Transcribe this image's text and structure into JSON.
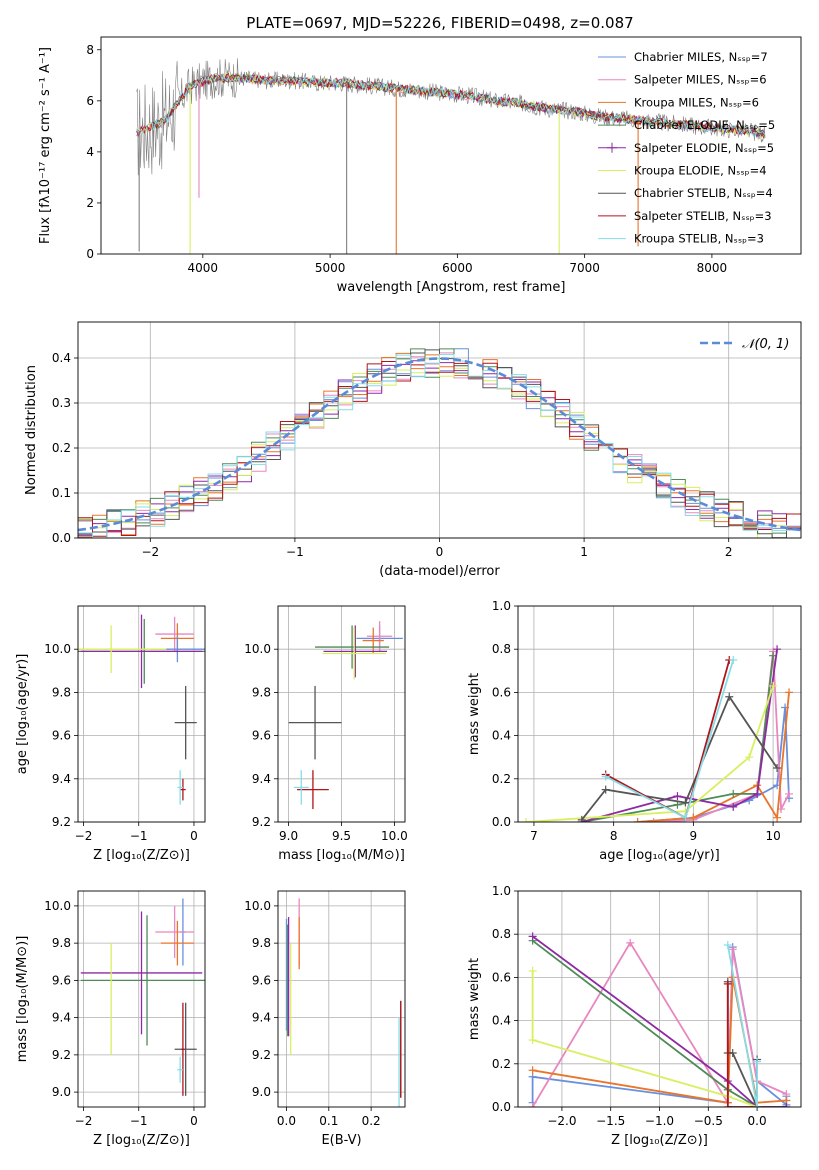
{
  "colors": {
    "chabrier_miles": "#6a8fdc",
    "salpeter_miles": "#e887c0",
    "kroupa_miles": "#e8752a",
    "chabrier_elodie": "#4f8a57",
    "salpeter_elodie": "#8e2aa3",
    "kroupa_elodie": "#d8ef5e",
    "chabrier_stelib": "#555555",
    "salpeter_stelib": "#b3141b",
    "kroupa_stelib": "#86dde8",
    "data": "#808080",
    "gaussian": "#5a8ad8"
  },
  "chart_data": [
    {
      "type": "line",
      "title": "PLATE=0697, MJD=52226, FIBERID=0498, z=0.087",
      "xlabel": "wavelength [Angstrom, rest frame]",
      "ylabel": "Flux [fλ10⁻¹⁷ erg cm⁻² s⁻¹ A⁻¹]",
      "xlim": [
        3200,
        8700
      ],
      "ylim": [
        0,
        8.5
      ],
      "xticks": [
        4000,
        5000,
        6000,
        7000,
        8000
      ],
      "yticks": [
        0,
        2,
        4,
        6,
        8
      ],
      "legend_position": "right",
      "legend": [
        {
          "label": "Chabrier MILES, N_SSP=7",
          "color_key": "chabrier_miles"
        },
        {
          "label": "Salpeter MILES, N_SSP=6",
          "color_key": "salpeter_miles"
        },
        {
          "label": "Kroupa MILES, N_SSP=6",
          "color_key": "kroupa_miles"
        },
        {
          "label": "Chabrier ELODIE, N_SSP=5",
          "color_key": "chabrier_elodie"
        },
        {
          "label": "Salpeter ELODIE, N_SSP=5",
          "color_key": "salpeter_elodie"
        },
        {
          "label": "Kroupa ELODIE, N_SSP=4",
          "color_key": "kroupa_elodie"
        },
        {
          "label": "Chabrier STELIB, N_SSP=4",
          "color_key": "chabrier_stelib"
        },
        {
          "label": "Salpeter STELIB, N_SSP=3",
          "color_key": "salpeter_stelib"
        },
        {
          "label": "Kroupa STELIB, N_SSP=3",
          "color_key": "kroupa_stelib"
        }
      ],
      "continuum": {
        "x": [
          3500,
          3700,
          3900,
          4100,
          4300,
          4500,
          4700,
          4900,
          5100,
          5300,
          5500,
          5700,
          5900,
          6100,
          6300,
          6500,
          6700,
          6900,
          7100,
          7300,
          7500,
          7700,
          7900,
          8100,
          8300,
          8400
        ],
        "y": [
          4.8,
          5.2,
          6.6,
          6.9,
          6.9,
          6.8,
          6.8,
          6.7,
          6.7,
          6.6,
          6.5,
          6.4,
          6.3,
          6.2,
          6.0,
          5.9,
          5.7,
          5.6,
          5.4,
          5.3,
          5.2,
          5.1,
          5.0,
          4.9,
          4.8,
          4.7
        ]
      },
      "dips": [
        {
          "x": 3500,
          "y": 0.1,
          "color_key": "data"
        },
        {
          "x": 3900,
          "y": 0,
          "color_key": "kroupa_elodie"
        },
        {
          "x": 3970,
          "y": 2.2,
          "color_key": "salpeter_miles"
        },
        {
          "x": 5130,
          "y": 0,
          "color_key": "data"
        },
        {
          "x": 5520,
          "y": 0,
          "color_key": "kroupa_miles"
        },
        {
          "x": 6800,
          "y": 0,
          "color_key": "kroupa_elodie"
        },
        {
          "x": 7420,
          "y": 0.3,
          "color_key": "kroupa_miles"
        }
      ]
    },
    {
      "type": "step",
      "xlabel": "(data-model)/error",
      "ylabel": "Normed distribution",
      "xlim": [
        -2.5,
        2.5
      ],
      "ylim": [
        0,
        0.48
      ],
      "xticks": [
        -2,
        -1,
        0,
        1,
        2
      ],
      "yticks": [
        0.0,
        0.1,
        0.2,
        0.3,
        0.4
      ],
      "legend": [
        {
          "label": "𝒩(0, 1)",
          "color_key": "gaussian"
        }
      ],
      "bin_width": 0.1
    },
    {
      "type": "error-bar",
      "xlabel": "Z [log₁₀(Z/Z⊙)]",
      "ylabel": "age  [log₁₀(age/yr)]",
      "xlim": [
        -2.1,
        0.2
      ],
      "ylim": [
        9.2,
        10.2
      ],
      "xticks": [
        -2,
        -1,
        0
      ],
      "xtick_labels": [
        "−2",
        "−1",
        "0"
      ],
      "yticks": [
        9.2,
        9.4,
        9.6,
        9.8,
        10.0
      ],
      "points": [
        {
          "x": -0.35,
          "xerr": 0.35,
          "y": 10.07,
          "yerr": 0.08,
          "color_key": "salpeter_miles"
        },
        {
          "x": -0.3,
          "xerr": 0.3,
          "y": 10.05,
          "yerr": 0.07,
          "color_key": "kroupa_miles"
        },
        {
          "x": -0.3,
          "xerr": 0.5,
          "y": 10.0,
          "yerr": 0.06,
          "color_key": "chabrier_miles"
        },
        {
          "x": -0.9,
          "xerr": 1.2,
          "y": 9.99,
          "yerr": 0.15,
          "color_key": "chabrier_elodie"
        },
        {
          "x": -0.95,
          "xerr": 1.1,
          "y": 9.99,
          "yerr": 0.17,
          "color_key": "salpeter_elodie"
        },
        {
          "x": -1.5,
          "xerr": 1.0,
          "y": 10.0,
          "yerr": 0.11,
          "color_key": "kroupa_elodie"
        },
        {
          "x": -0.15,
          "xerr": 0.2,
          "y": 9.66,
          "yerr": 0.17,
          "color_key": "chabrier_stelib"
        },
        {
          "x": -0.2,
          "xerr": 0.05,
          "y": 9.35,
          "yerr": 0.05,
          "color_key": "salpeter_stelib"
        },
        {
          "x": -0.25,
          "xerr": 0.05,
          "y": 9.36,
          "yerr": 0.08,
          "color_key": "kroupa_stelib"
        }
      ]
    },
    {
      "type": "error-bar",
      "xlabel": "mass [log₁₀(M/M⊙)]",
      "ylabel": "",
      "xlim": [
        8.9,
        10.1
      ],
      "ylim": [
        9.2,
        10.2
      ],
      "xticks": [
        9.0,
        9.5,
        10.0
      ],
      "xtick_labels": [
        "9.0",
        "9.5",
        "10.0"
      ],
      "yticks": [
        9.2,
        9.4,
        9.6,
        9.8,
        10.0
      ],
      "points": [
        {
          "x": 9.86,
          "xerr": 0.22,
          "y": 10.05,
          "yerr": 0.06,
          "color_key": "chabrier_miles"
        },
        {
          "x": 9.86,
          "xerr": 0.12,
          "y": 10.06,
          "yerr": 0.07,
          "color_key": "salpeter_miles"
        },
        {
          "x": 9.8,
          "xerr": 0.1,
          "y": 10.04,
          "yerr": 0.06,
          "color_key": "kroupa_miles"
        },
        {
          "x": 9.6,
          "xerr": 0.35,
          "y": 10.01,
          "yerr": 0.1,
          "color_key": "chabrier_elodie"
        },
        {
          "x": 9.63,
          "xerr": 0.3,
          "y": 9.99,
          "yerr": 0.12,
          "color_key": "salpeter_elodie"
        },
        {
          "x": 9.62,
          "xerr": 0.3,
          "y": 9.98,
          "yerr": 0.12,
          "color_key": "kroupa_elodie"
        },
        {
          "x": 9.25,
          "xerr": 0.25,
          "y": 9.66,
          "yerr": 0.17,
          "color_key": "chabrier_stelib"
        },
        {
          "x": 9.23,
          "xerr": 0.15,
          "y": 9.35,
          "yerr": 0.09,
          "color_key": "salpeter_stelib"
        },
        {
          "x": 9.12,
          "xerr": 0.07,
          "y": 9.36,
          "yerr": 0.08,
          "color_key": "kroupa_stelib"
        }
      ]
    },
    {
      "type": "line",
      "xlabel": "age  [log₁₀(age/yr)]",
      "ylabel": "mass weight",
      "xlim": [
        6.8,
        10.35
      ],
      "ylim": [
        0,
        1.0
      ],
      "xticks": [
        7,
        8,
        9,
        10
      ],
      "xtick_labels": [
        "7",
        "8",
        "9",
        "10"
      ],
      "yticks": [
        0.0,
        0.2,
        0.4,
        0.6,
        0.8,
        1.0
      ],
      "series": [
        {
          "color_key": "chabrier_miles",
          "x": [
            8.3,
            9.0,
            9.7,
            10.05,
            10.15,
            10.2
          ],
          "y": [
            0.0,
            0.02,
            0.1,
            0.17,
            0.53,
            0.11
          ]
        },
        {
          "color_key": "salpeter_miles",
          "x": [
            8.5,
            9.0,
            9.8,
            10.0,
            10.1,
            10.2
          ],
          "y": [
            0.0,
            0.01,
            0.13,
            0.79,
            0.06,
            0.13
          ]
        },
        {
          "color_key": "kroupa_miles",
          "x": [
            8.3,
            9.0,
            9.8,
            10.05,
            10.2
          ],
          "y": [
            0.0,
            0.02,
            0.17,
            0.02,
            0.6
          ]
        },
        {
          "color_key": "chabrier_elodie",
          "x": [
            7.6,
            8.8,
            9.5,
            9.8,
            10.0
          ],
          "y": [
            0.0,
            0.08,
            0.13,
            0.13,
            0.77
          ]
        },
        {
          "color_key": "salpeter_elodie",
          "x": [
            7.6,
            8.8,
            9.5,
            9.8,
            10.05
          ],
          "y": [
            0.0,
            0.12,
            0.07,
            0.13,
            0.8
          ]
        },
        {
          "color_key": "kroupa_elodie",
          "x": [
            6.9,
            8.9,
            9.7,
            10.0
          ],
          "y": [
            0.0,
            0.05,
            0.3,
            0.63
          ]
        },
        {
          "color_key": "chabrier_stelib",
          "x": [
            7.6,
            7.9,
            8.9,
            9.45,
            10.05
          ],
          "y": [
            0.01,
            0.15,
            0.09,
            0.58,
            0.25
          ]
        },
        {
          "color_key": "salpeter_stelib",
          "x": [
            7.9,
            8.9,
            9.45
          ],
          "y": [
            0.22,
            0.02,
            0.75
          ]
        },
        {
          "color_key": "kroupa_stelib",
          "x": [
            7.9,
            8.9,
            9.5
          ],
          "y": [
            0.21,
            0.02,
            0.75
          ]
        }
      ]
    },
    {
      "type": "error-bar",
      "xlabel": "Z [log₁₀(Z/Z⊙)]",
      "ylabel": "mass [log₁₀(M/M⊙)]",
      "xlim": [
        -2.1,
        0.2
      ],
      "ylim": [
        8.92,
        10.08
      ],
      "xticks": [
        -2,
        -1,
        0
      ],
      "xtick_labels": [
        "−2",
        "−1",
        "0"
      ],
      "yticks": [
        9.0,
        9.2,
        9.4,
        9.6,
        9.8,
        10.0
      ],
      "points": [
        {
          "x": -0.2,
          "xerr": 0.05,
          "y": 9.86,
          "yerr": 0.18,
          "color_key": "chabrier_miles"
        },
        {
          "x": -0.35,
          "xerr": 0.35,
          "y": 9.86,
          "yerr": 0.14,
          "color_key": "salpeter_miles"
        },
        {
          "x": -0.3,
          "xerr": 0.3,
          "y": 9.8,
          "yerr": 0.12,
          "color_key": "kroupa_miles"
        },
        {
          "x": -0.85,
          "xerr": 1.2,
          "y": 9.6,
          "yerr": 0.35,
          "color_key": "chabrier_elodie"
        },
        {
          "x": -0.95,
          "xerr": 1.1,
          "y": 9.64,
          "yerr": 0.33,
          "color_key": "salpeter_elodie"
        },
        {
          "x": -1.5,
          "xerr": 0.0,
          "y": 9.5,
          "yerr": 0.3,
          "color_key": "kroupa_elodie"
        },
        {
          "x": -0.15,
          "xerr": 0.2,
          "y": 9.23,
          "yerr": 0.25,
          "color_key": "chabrier_stelib"
        },
        {
          "x": -0.2,
          "xerr": 0.03,
          "y": 9.23,
          "yerr": 0.25,
          "color_key": "salpeter_stelib"
        },
        {
          "x": -0.25,
          "xerr": 0.05,
          "y": 9.12,
          "yerr": 0.07,
          "color_key": "kroupa_stelib"
        }
      ]
    },
    {
      "type": "error-bar",
      "xlabel": "E(B-V)",
      "ylabel": "",
      "xlim": [
        -0.02,
        0.28
      ],
      "ylim": [
        8.92,
        10.08
      ],
      "xticks": [
        0.0,
        0.1,
        0.2
      ],
      "xtick_labels": [
        "0.0",
        "0.1",
        "0.2"
      ],
      "yticks": [
        9.0,
        9.2,
        9.4,
        9.6,
        9.8,
        10.0
      ],
      "points": [
        {
          "x": 0.0,
          "y": 9.63,
          "yerr": 0.3,
          "color_key": "chabrier_miles"
        },
        {
          "x": 0.03,
          "y": 9.86,
          "yerr": 0.18,
          "color_key": "salpeter_miles"
        },
        {
          "x": 0.03,
          "y": 9.8,
          "yerr": 0.14,
          "color_key": "kroupa_miles"
        },
        {
          "x": 0.003,
          "y": 9.6,
          "yerr": 0.3,
          "color_key": "chabrier_elodie"
        },
        {
          "x": 0.005,
          "y": 9.62,
          "yerr": 0.32,
          "color_key": "salpeter_elodie"
        },
        {
          "x": 0.01,
          "y": 9.5,
          "yerr": 0.3,
          "color_key": "kroupa_elodie"
        },
        {
          "x": 0.27,
          "y": 9.23,
          "yerr": 0.26,
          "color_key": "chabrier_stelib"
        },
        {
          "x": 0.27,
          "y": 9.23,
          "yerr": 0.26,
          "color_key": "salpeter_stelib"
        },
        {
          "x": 0.266,
          "y": 9.12,
          "yerr": 0.28,
          "color_key": "kroupa_stelib"
        }
      ]
    },
    {
      "type": "line",
      "xlabel": "Z [log₁₀(Z/Z⊙)]",
      "ylabel": "mass weight",
      "xlim": [
        -2.45,
        0.45
      ],
      "ylim": [
        0,
        1.0
      ],
      "xticks": [
        -2.0,
        -1.5,
        -1.0,
        -0.5,
        0.0
      ],
      "xtick_labels": [
        "−2.0",
        "−1.5",
        "−1.0",
        "−0.5",
        "0.0"
      ],
      "yticks": [
        0.0,
        0.2,
        0.4,
        0.6,
        0.8,
        1.0
      ],
      "series": [
        {
          "color_key": "chabrier_miles",
          "x": [
            -2.3,
            -2.3,
            -0.3,
            -0.25,
            0.0,
            0.3,
            0.3
          ],
          "y": [
            0.02,
            0.14,
            0.02,
            0.74,
            0.12,
            0.01,
            0.05
          ]
        },
        {
          "color_key": "salpeter_miles",
          "x": [
            -2.3,
            -1.3,
            -0.3,
            -0.25,
            0.0,
            0.3
          ],
          "y": [
            0.0,
            0.76,
            0.02,
            0.73,
            0.12,
            0.06
          ]
        },
        {
          "color_key": "kroupa_miles",
          "x": [
            -2.3,
            -0.3,
            -0.25,
            0.0,
            0.3
          ],
          "y": [
            0.17,
            0.02,
            0.6,
            0.02,
            0.03
          ]
        },
        {
          "color_key": "chabrier_elodie",
          "x": [
            -2.3,
            -0.3,
            0.0,
            0.3
          ],
          "y": [
            0.77,
            0.08,
            0.0,
            0.0
          ]
        },
        {
          "color_key": "salpeter_elodie",
          "x": [
            -2.3,
            -0.3,
            0.0,
            0.3
          ],
          "y": [
            0.79,
            0.12,
            0.0,
            0.0
          ]
        },
        {
          "color_key": "kroupa_elodie",
          "x": [
            -2.3,
            -2.3,
            -0.3,
            0.0
          ],
          "y": [
            0.63,
            0.31,
            0.05,
            0.0
          ]
        },
        {
          "color_key": "chabrier_stelib",
          "x": [
            -0.3,
            -0.3,
            -0.25,
            0.0,
            0.0
          ],
          "y": [
            0.58,
            0.25,
            0.25,
            0.0,
            0.22
          ]
        },
        {
          "color_key": "salpeter_stelib",
          "x": [
            -0.3,
            -0.3,
            0.0
          ],
          "y": [
            0.57,
            0.0,
            0.0
          ]
        },
        {
          "color_key": "kroupa_stelib",
          "x": [
            -0.3,
            0.0,
            0.0
          ],
          "y": [
            0.75,
            0.0,
            0.21
          ]
        }
      ]
    }
  ]
}
